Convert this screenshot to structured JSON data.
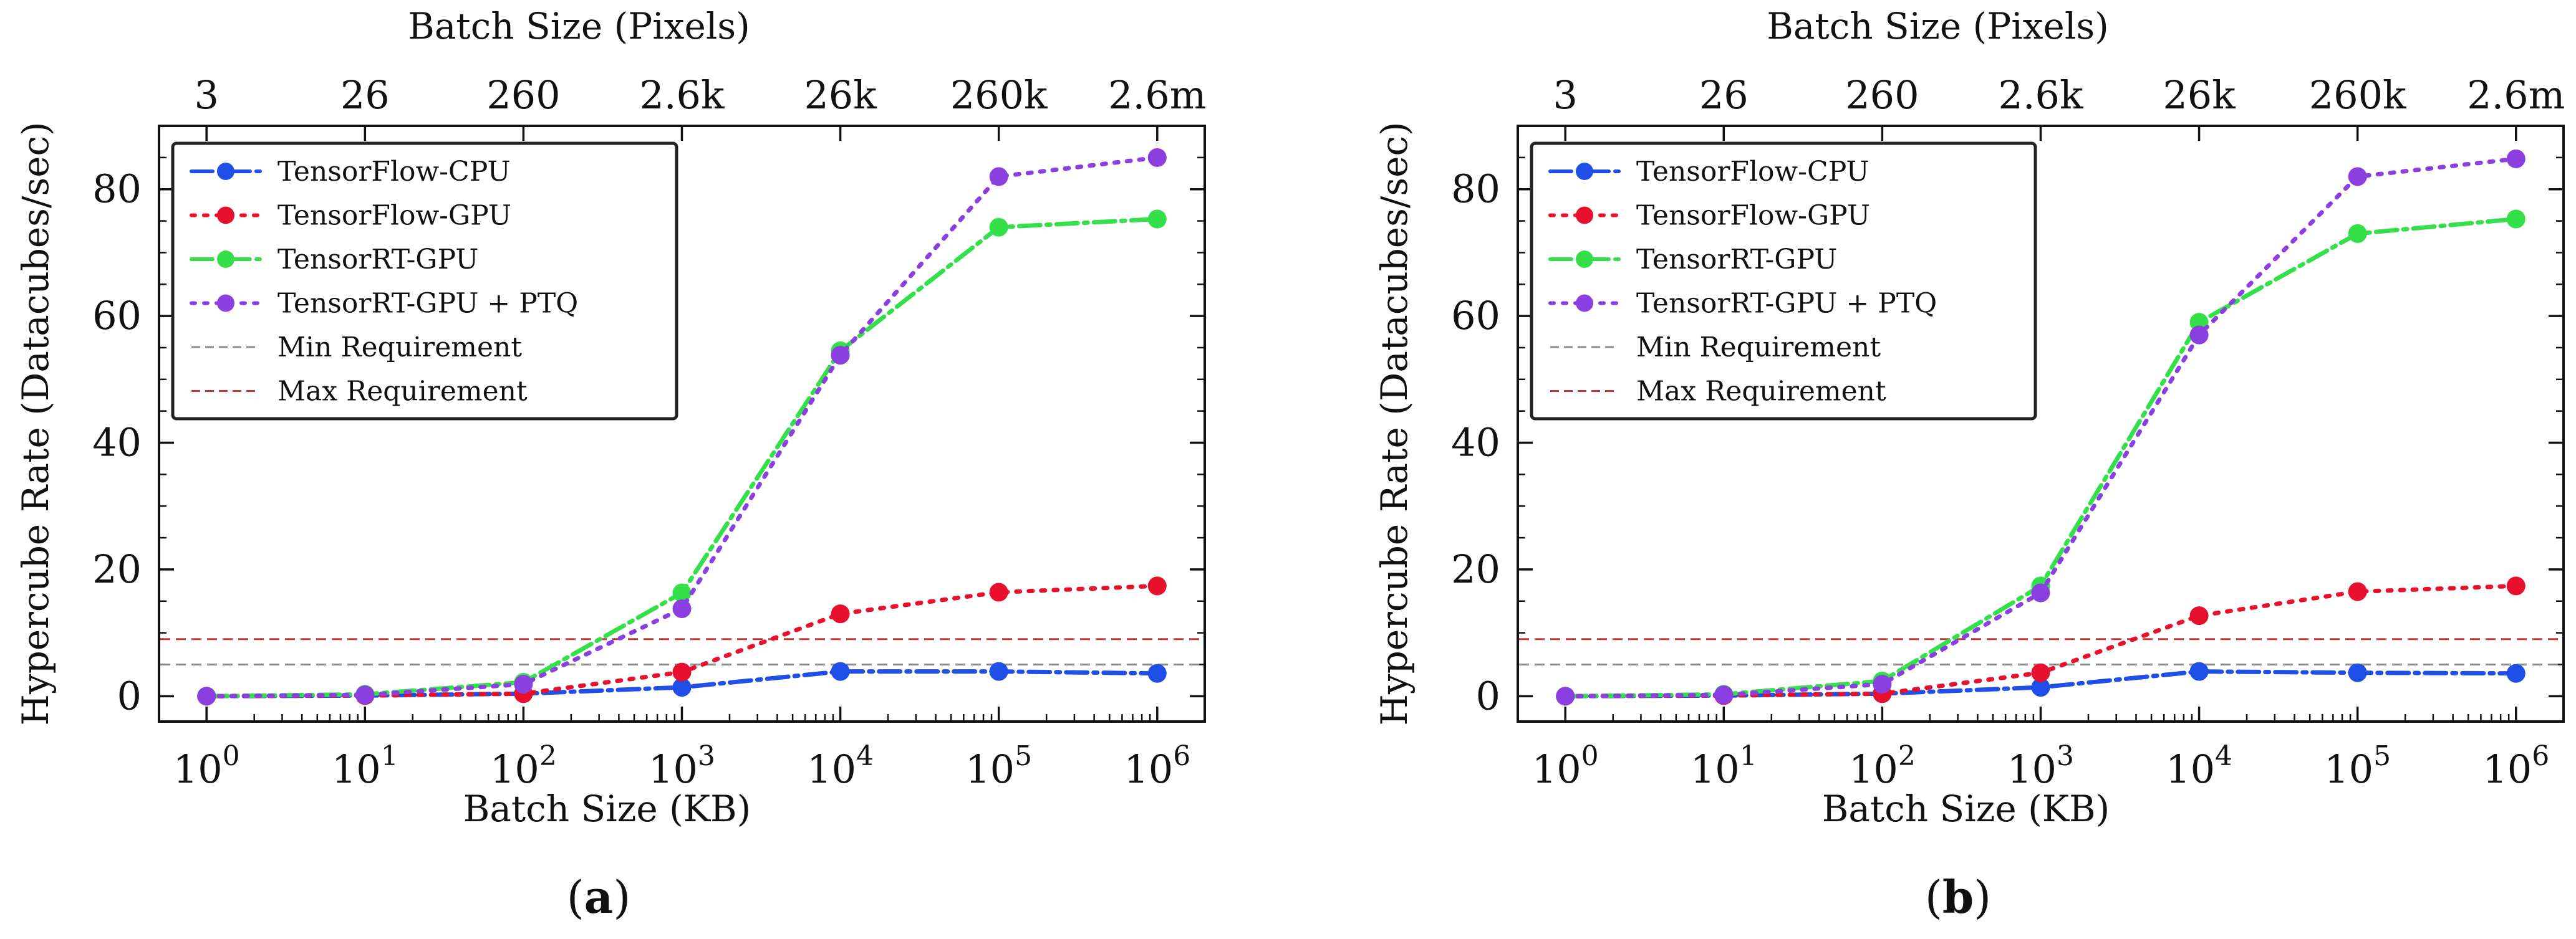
{
  "figure": {
    "background": "#ffffff"
  },
  "chart_data": [
    {
      "type": "line",
      "caption": {
        "open": "(",
        "letter": "a",
        "close": ")"
      },
      "xlabel": "Batch Size (KB)",
      "ylabel": "Hypercube Rate (Datacubes/sec)",
      "x_scale": "log",
      "xlim_exp": [
        -0.3,
        6.3
      ],
      "ylim": [
        -4,
        90
      ],
      "x_ticks": [
        {
          "exp": 0,
          "base": "10",
          "sup": "0"
        },
        {
          "exp": 1,
          "base": "10",
          "sup": "1"
        },
        {
          "exp": 2,
          "base": "10",
          "sup": "2"
        },
        {
          "exp": 3,
          "base": "10",
          "sup": "3"
        },
        {
          "exp": 4,
          "base": "10",
          "sup": "4"
        },
        {
          "exp": 5,
          "base": "10",
          "sup": "5"
        },
        {
          "exp": 6,
          "base": "10",
          "sup": "6"
        }
      ],
      "y_ticks": [
        0,
        20,
        40,
        60,
        80
      ],
      "top_axis": {
        "label": "Batch Size (Pixels)",
        "tick_labels": [
          "3",
          "26",
          "260",
          "2.6k",
          "26k",
          "260k",
          "2.6m"
        ]
      },
      "x": [
        1,
        10,
        100,
        1000,
        10000,
        100000,
        1000000
      ],
      "series": [
        {
          "name": "TensorFlow-CPU",
          "color": "#1f4fe8",
          "dash": "dashdot",
          "values": [
            0.0,
            0.1,
            0.4,
            1.4,
            3.9,
            3.9,
            3.6
          ]
        },
        {
          "name": "TensorFlow-GPU",
          "color": "#e8112d",
          "dash": "dotted",
          "values": [
            0.0,
            0.1,
            0.4,
            3.8,
            13.0,
            16.4,
            17.4
          ]
        },
        {
          "name": "TensorRT-GPU",
          "color": "#33e04a",
          "dash": "dashdot",
          "values": [
            0.0,
            0.3,
            2.2,
            16.3,
            54.5,
            74.0,
            75.3
          ]
        },
        {
          "name": "TensorRT-GPU + PTQ",
          "color": "#8b3fe0",
          "dash": "dotted",
          "values": [
            0.0,
            0.2,
            1.9,
            13.8,
            53.8,
            82.0,
            85.0
          ]
        }
      ],
      "reference_lines": [
        {
          "name": "Min Requirement",
          "y": 5,
          "color": "#8c8c8c"
        },
        {
          "name": "Max Requirement",
          "y": 9,
          "color": "#c0393b"
        }
      ],
      "legend": {
        "location": "upper-left"
      }
    },
    {
      "type": "line",
      "caption": {
        "open": "(",
        "letter": "b",
        "close": ")"
      },
      "xlabel": "Batch Size (KB)",
      "ylabel": "Hypercube Rate (Datacubes/sec)",
      "x_scale": "log",
      "xlim_exp": [
        -0.3,
        6.3
      ],
      "ylim": [
        -4,
        90
      ],
      "x_ticks": [
        {
          "exp": 0,
          "base": "10",
          "sup": "0"
        },
        {
          "exp": 1,
          "base": "10",
          "sup": "1"
        },
        {
          "exp": 2,
          "base": "10",
          "sup": "2"
        },
        {
          "exp": 3,
          "base": "10",
          "sup": "3"
        },
        {
          "exp": 4,
          "base": "10",
          "sup": "4"
        },
        {
          "exp": 5,
          "base": "10",
          "sup": "5"
        },
        {
          "exp": 6,
          "base": "10",
          "sup": "6"
        }
      ],
      "y_ticks": [
        0,
        20,
        40,
        60,
        80
      ],
      "top_axis": {
        "label": "Batch Size (Pixels)",
        "tick_labels": [
          "3",
          "26",
          "260",
          "2.6k",
          "26k",
          "260k",
          "2.6m"
        ]
      },
      "x": [
        1,
        10,
        100,
        1000,
        10000,
        100000,
        1000000
      ],
      "series": [
        {
          "name": "TensorFlow-CPU",
          "color": "#1f4fe8",
          "dash": "dashdot",
          "values": [
            0.0,
            0.1,
            0.4,
            1.4,
            3.9,
            3.7,
            3.6
          ]
        },
        {
          "name": "TensorFlow-GPU",
          "color": "#e8112d",
          "dash": "dotted",
          "values": [
            0.0,
            0.1,
            0.4,
            3.7,
            12.7,
            16.5,
            17.4
          ]
        },
        {
          "name": "TensorRT-GPU",
          "color": "#33e04a",
          "dash": "dashdot",
          "values": [
            0.0,
            0.3,
            2.4,
            17.4,
            59.0,
            73.0,
            75.3
          ]
        },
        {
          "name": "TensorRT-GPU + PTQ",
          "color": "#8b3fe0",
          "dash": "dotted",
          "values": [
            0.0,
            0.2,
            1.9,
            16.3,
            57.0,
            82.0,
            84.8
          ]
        }
      ],
      "reference_lines": [
        {
          "name": "Min Requirement",
          "y": 5,
          "color": "#8c8c8c"
        },
        {
          "name": "Max Requirement",
          "y": 9,
          "color": "#c0393b"
        }
      ],
      "legend": {
        "location": "upper-left"
      }
    }
  ]
}
